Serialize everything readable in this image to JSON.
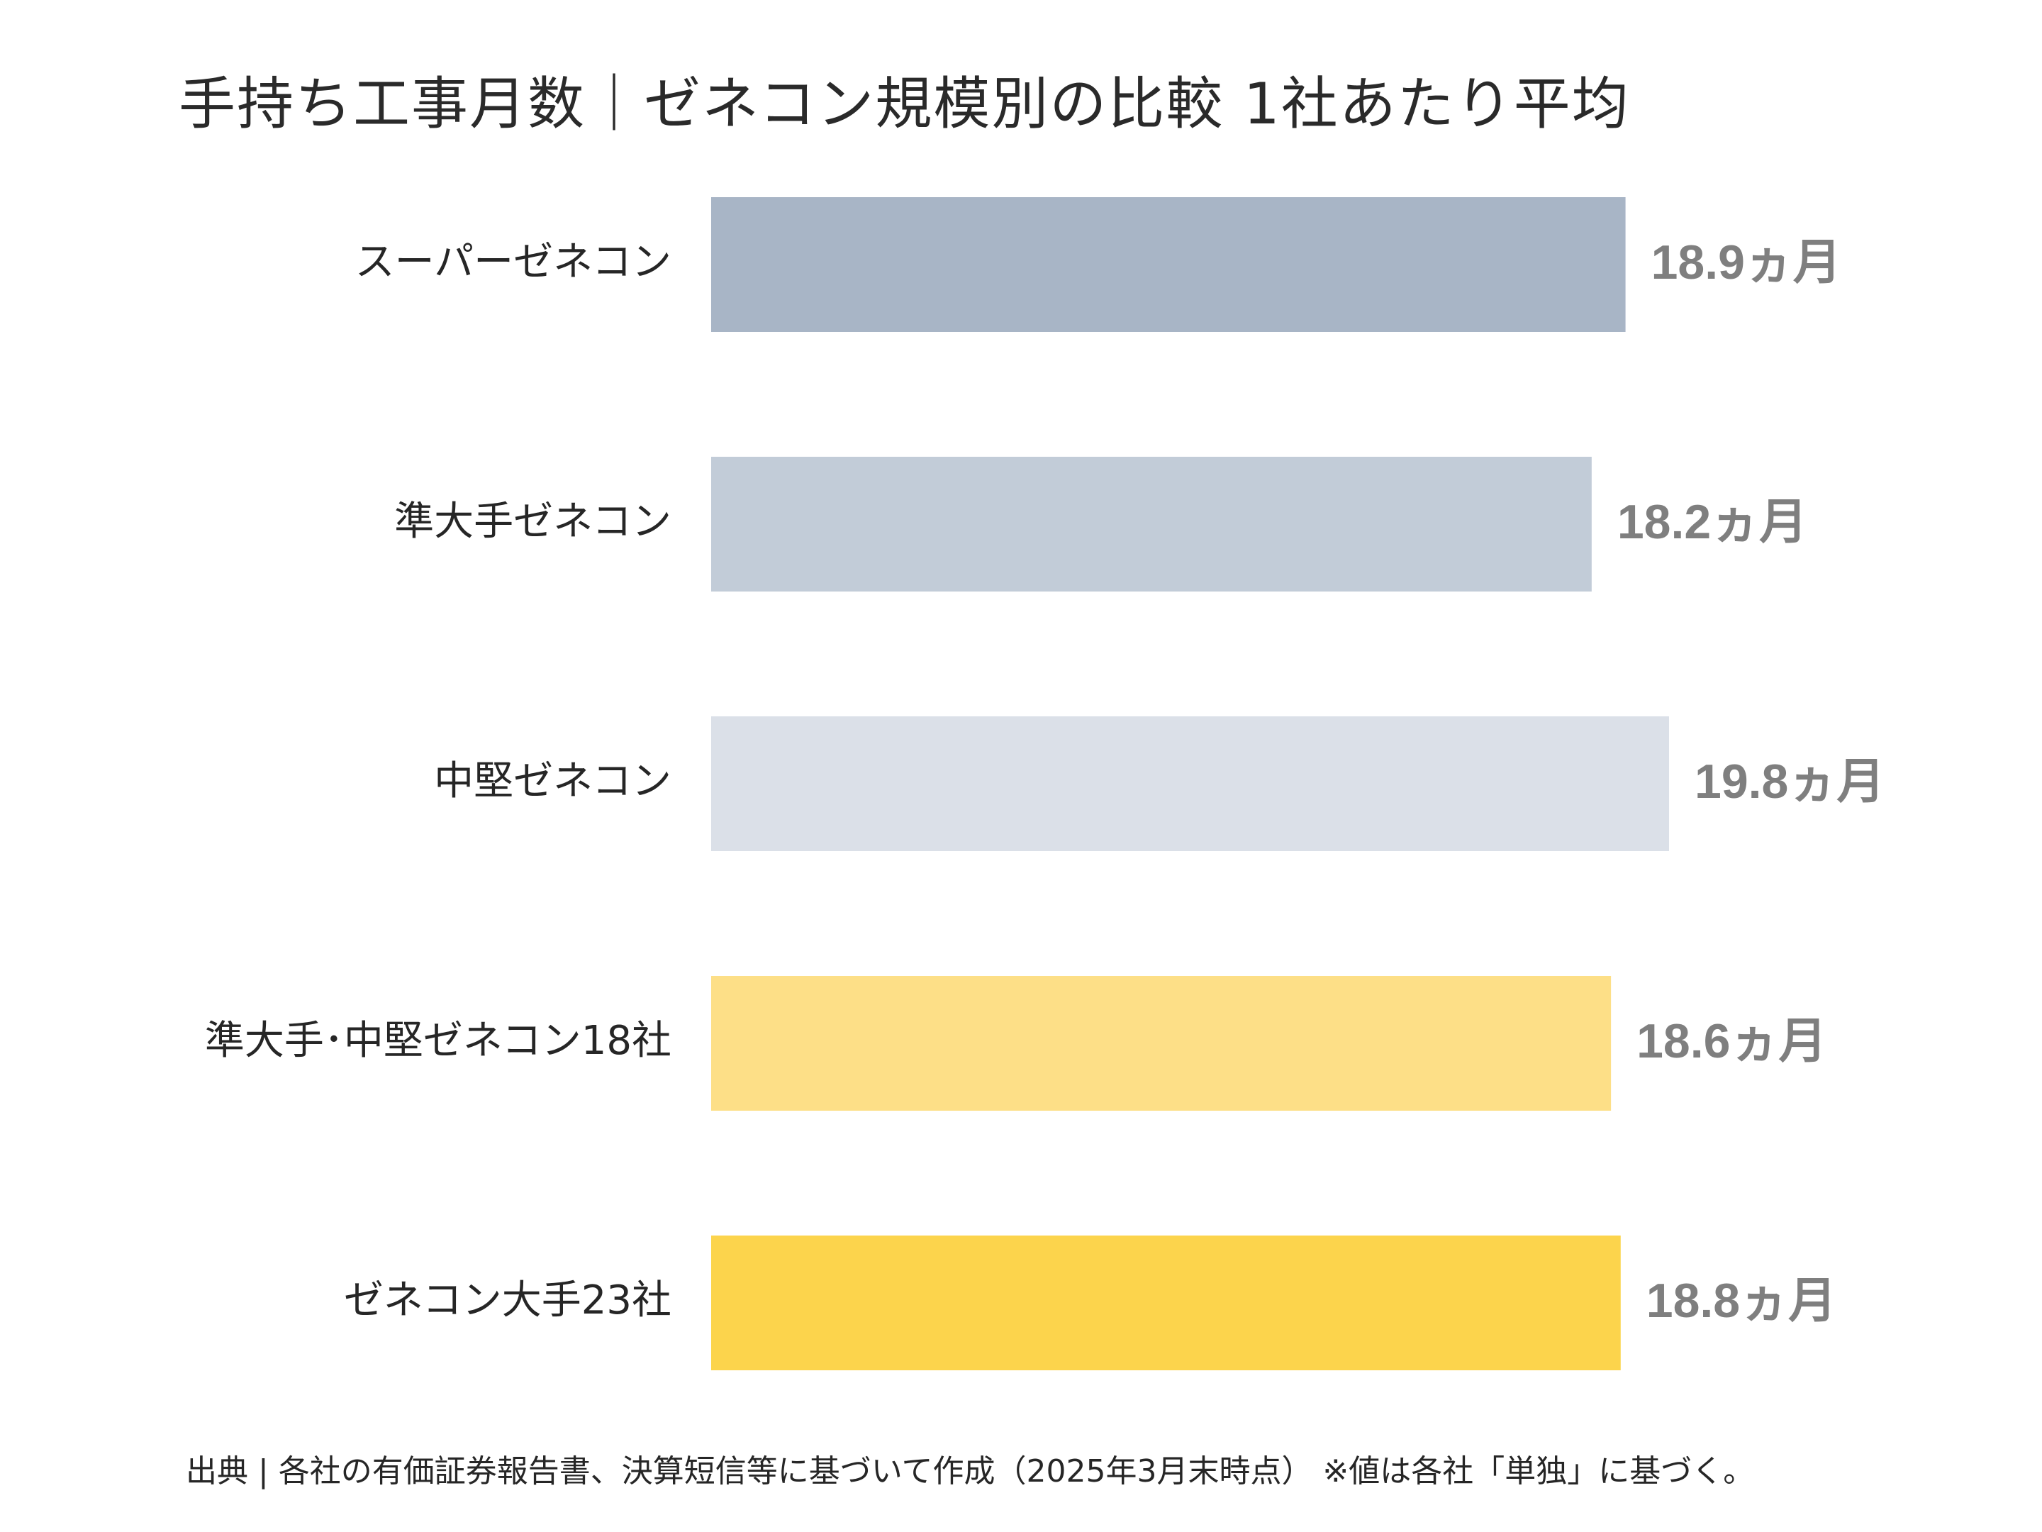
{
  "title": "手持ち工事月数｜ゼネコン規模別の比較 1社あたり平均",
  "source": "出典 | 各社の有価証券報告書、決算短信等に基づいて作成（2025年3月末時点） ※値は各社「単独」に基づく。",
  "chart_data": {
    "type": "bar",
    "orientation": "horizontal",
    "title": "手持ち工事月数｜ゼネコン規模別の比較 1社あたり平均",
    "unit": "ヵ月",
    "categories": [
      "スーパーゼネコン",
      "準大手ゼネコン",
      "中堅ゼネコン",
      "準大手･中堅ゼネコン18社",
      "ゼネコン大手23社"
    ],
    "values": [
      18.9,
      18.2,
      19.8,
      18.6,
      18.8
    ],
    "value_labels": [
      "18.9ヵ月",
      "18.2ヵ月",
      "19.8ヵ月",
      "18.6ヵ月",
      "18.8ヵ月"
    ],
    "colors": [
      "#a8b5c6",
      "#c2ccd8",
      "#dbe0e8",
      "#fddf87",
      "#fcd44c"
    ],
    "xlim": [
      0,
      19.8
    ],
    "grid": false,
    "legend": "none"
  }
}
